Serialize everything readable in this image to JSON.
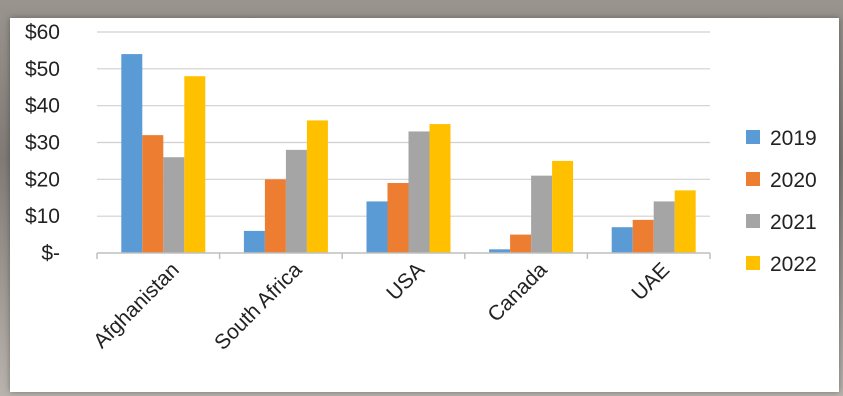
{
  "chart_data": {
    "type": "bar",
    "title": "",
    "xlabel": "",
    "ylabel": "",
    "ylim": [
      0,
      60
    ],
    "yticks": [
      0,
      10,
      20,
      30,
      40,
      50,
      60
    ],
    "ytick_labels": [
      "$-",
      "$10",
      "$20",
      "$30",
      "$40",
      "$50",
      "$60"
    ],
    "categories": [
      "Afghanistan",
      "South Africa",
      "USA",
      "Canada",
      "UAE"
    ],
    "series": [
      {
        "name": "2019",
        "color": "#5b9bd5",
        "values": [
          54,
          6,
          14,
          1,
          7
        ]
      },
      {
        "name": "2020",
        "color": "#ed7d31",
        "values": [
          32,
          20,
          19,
          5,
          9
        ]
      },
      {
        "name": "2021",
        "color": "#a5a5a5",
        "values": [
          26,
          28,
          33,
          21,
          14
        ]
      },
      {
        "name": "2022",
        "color": "#ffc000",
        "values": [
          48,
          36,
          35,
          25,
          17
        ]
      }
    ],
    "grid": true,
    "legend_position": "right"
  }
}
